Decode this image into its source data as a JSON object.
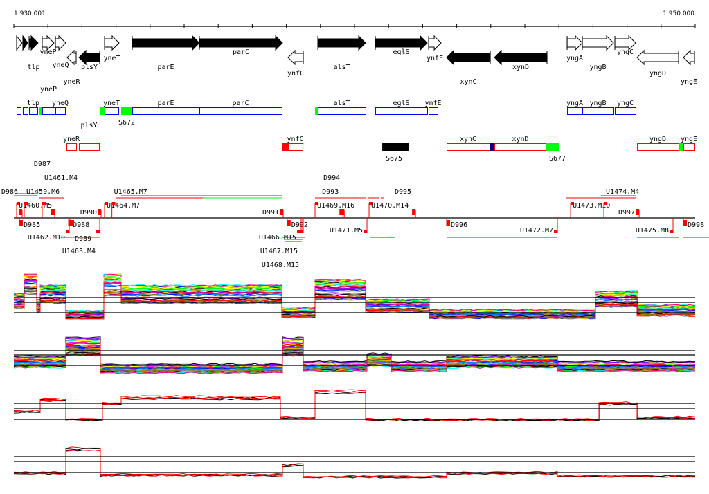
{
  "ruler": {
    "start_label": "1 930 001",
    "end_label": "1 950 000",
    "start_bp": 1930001,
    "end_bp": 1950000
  },
  "genes": [
    {
      "name": "",
      "start": 1930082,
      "end": 1930245,
      "strand": "+",
      "filled": false
    },
    {
      "name": "",
      "start": 1930265,
      "end": 1930408,
      "strand": "+",
      "filled": true
    },
    {
      "name": "tlp",
      "start": 1930448,
      "end": 1930712,
      "strand": "+",
      "filled": true
    },
    {
      "name": "yneP",
      "start": 1930834,
      "end": 1931180,
      "strand": "+",
      "filled": false
    },
    {
      "name": "yneQ",
      "start": 1931221,
      "end": 1931525,
      "strand": "+",
      "filled": false
    },
    {
      "name": "yneR",
      "start": 1931566,
      "end": 1931830,
      "strand": "-",
      "filled": false
    },
    {
      "name": "plsY",
      "start": 1931912,
      "end": 1932521,
      "strand": "-",
      "filled": true
    },
    {
      "name": "yneT",
      "start": 1932664,
      "end": 1933090,
      "strand": "+",
      "filled": false
    },
    {
      "name": "parE",
      "start": 1933477,
      "end": 1935448,
      "strand": "+",
      "filled": true
    },
    {
      "name": "parC",
      "start": 1935448,
      "end": 1937887,
      "strand": "+",
      "filled": true
    },
    {
      "name": "ynfC",
      "start": 1938050,
      "end": 1938497,
      "strand": "-",
      "filled": false
    },
    {
      "name": "alsT",
      "start": 1938924,
      "end": 1940326,
      "strand": "+",
      "filled": true
    },
    {
      "name": "eglS",
      "start": 1940611,
      "end": 1942135,
      "strand": "+",
      "filled": true
    },
    {
      "name": "ynfE",
      "start": 1942176,
      "end": 1942542,
      "strand": "+",
      "filled": false
    },
    {
      "name": "xynC",
      "start": 1942704,
      "end": 1943985,
      "strand": "-",
      "filled": true
    },
    {
      "name": "xynD",
      "start": 1944107,
      "end": 1945651,
      "strand": "-",
      "filled": true
    },
    {
      "name": "yngA",
      "start": 1946241,
      "end": 1946688,
      "strand": "+",
      "filled": false
    },
    {
      "name": "yngB",
      "start": 1946688,
      "end": 1947602,
      "strand": "+",
      "filled": false
    },
    {
      "name": "yngC",
      "start": 1947643,
      "end": 1948253,
      "strand": "+",
      "filled": false
    },
    {
      "name": "yngD",
      "start": 1948294,
      "end": 1949513,
      "strand": "-",
      "filled": false
    },
    {
      "name": "yngE",
      "start": 1949655,
      "end": 1949980,
      "strand": "-",
      "filled": false
    }
  ],
  "transcripts_plus": [
    {
      "name": "",
      "start": 1930082,
      "end": 1930204,
      "color": "#0000ff",
      "fill": "none"
    },
    {
      "name": "",
      "start": 1930265,
      "end": 1930408,
      "color": "#0000ff",
      "fill": "none"
    },
    {
      "name": "tlp",
      "start": 1930448,
      "end": 1930692,
      "color": "#0000ff",
      "fill": "none"
    },
    {
      "name": "",
      "start": 1930733,
      "end": 1930814,
      "color": "#00ff00",
      "fill": "#00ff00"
    },
    {
      "name": "yneP",
      "start": 1930834,
      "end": 1931200,
      "color": "#0000ff",
      "fill": "none"
    },
    {
      "name": "yneQ",
      "start": 1931221,
      "end": 1931505,
      "color": "#0000ff",
      "fill": "none"
    },
    {
      "name": "",
      "start": 1932521,
      "end": 1932643,
      "color": "#00ff00",
      "fill": "#00ff00"
    },
    {
      "name": "yneT",
      "start": 1932664,
      "end": 1933070,
      "color": "#0000ff",
      "fill": "none"
    },
    {
      "name": "",
      "start": 1933151,
      "end": 1933477,
      "color": "#00ff00",
      "fill": "#00ff00"
    },
    {
      "name": "parE",
      "start": 1933477,
      "end": 1935448,
      "color": "#0000ff",
      "fill": "none"
    },
    {
      "name": "parC",
      "start": 1935448,
      "end": 1937867,
      "color": "#0000ff",
      "fill": "none"
    },
    {
      "name": "",
      "start": 1938842,
      "end": 1938924,
      "color": "#00ff00",
      "fill": "#00ff00"
    },
    {
      "name": "alsT",
      "start": 1938924,
      "end": 1940326,
      "color": "#0000ff",
      "fill": "none"
    },
    {
      "name": "eglS",
      "start": 1940611,
      "end": 1942135,
      "color": "#0000ff",
      "fill": "none"
    },
    {
      "name": "ynfE",
      "start": 1942176,
      "end": 1942440,
      "color": "#0000ff",
      "fill": "none"
    },
    {
      "name": "yngA",
      "start": 1946241,
      "end": 1946688,
      "color": "#0000ff",
      "fill": "none"
    },
    {
      "name": "yngB",
      "start": 1946688,
      "end": 1947602,
      "color": "#0000ff",
      "fill": "none"
    },
    {
      "name": "yngC",
      "start": 1947643,
      "end": 1948253,
      "color": "#0000ff",
      "fill": "none"
    }
  ],
  "transcripts_plus_signals": [
    {
      "name": "S672",
      "at": 1933314
    }
  ],
  "transcripts_minus": [
    {
      "name": "yneR",
      "start": 1931546,
      "end": 1931830,
      "color": "#ff0000",
      "fill": "none"
    },
    {
      "name": "plsY",
      "start": 1931912,
      "end": 1932500,
      "color": "#ff0000",
      "fill": "none"
    },
    {
      "name": "",
      "start": 1937867,
      "end": 1938050,
      "color": "#ff0000",
      "fill": "#ff0000"
    },
    {
      "name": "ynfC",
      "start": 1938050,
      "end": 1938477,
      "color": "#ff0000",
      "fill": "none"
    },
    {
      "name": "",
      "start": 1940815,
      "end": 1941567,
      "color": "#000000",
      "fill": "#000000"
    },
    {
      "name": "xynC",
      "start": 1942704,
      "end": 1943965,
      "color": "#ff0000",
      "fill": "none"
    },
    {
      "name": "",
      "start": 1943965,
      "end": 1944107,
      "color": "#000080",
      "fill": "#000080"
    },
    {
      "name": "xynD",
      "start": 1944107,
      "end": 1945631,
      "color": "#ff0000",
      "fill": "none"
    },
    {
      "name": "",
      "start": 1945631,
      "end": 1945977,
      "color": "#00ff00",
      "fill": "#00ff00"
    },
    {
      "name": "yngD",
      "start": 1948294,
      "end": 1949513,
      "color": "#ff0000",
      "fill": "none"
    },
    {
      "name": "",
      "start": 1949513,
      "end": 1949615,
      "color": "#00ff00",
      "fill": "#00ff00"
    },
    {
      "name": "yngE",
      "start": 1949655,
      "end": 1949980,
      "color": "#ff0000",
      "fill": "none"
    }
  ],
  "transcripts_minus_signals": [
    {
      "name": "S675",
      "at": 1941160
    },
    {
      "name": "S677",
      "at": 1945956
    }
  ],
  "features_above": [
    {
      "name": "U1460.M5",
      "at": 1930082
    },
    {
      "name": "U1459.M6",
      "at": 1930306
    },
    {
      "name": "D986",
      "at": 1930245
    },
    {
      "name": "U1461.M4",
      "at": 1930834
    },
    {
      "name": "D987",
      "at": 1931200
    },
    {
      "name": "D990",
      "at": 1932562
    },
    {
      "name": "U1464.M7",
      "at": 1932664
    },
    {
      "name": "U1465.M7",
      "at": 1932880
    },
    {
      "name": "D991",
      "at": 1937908
    },
    {
      "name": "U1469.M16",
      "at": 1938842
    },
    {
      "name": "D993",
      "at": 1939660
    },
    {
      "name": "D994",
      "at": 1939700
    },
    {
      "name": "U1470.M14",
      "at": 1940428
    },
    {
      "name": "D995",
      "at": 1941791
    },
    {
      "name": "U1473.M10",
      "at": 1946343
    },
    {
      "name": "U1474.M4",
      "at": 1947318
    },
    {
      "name": "D997",
      "at": 1948355
    }
  ],
  "features_below": [
    {
      "name": "D985",
      "at": 1930164
    },
    {
      "name": "U1462.M10",
      "at": 1931627
    },
    {
      "name": "D988",
      "at": 1931608
    },
    {
      "name": "D989",
      "at": 1931668
    },
    {
      "name": "U1463.M4",
      "at": 1932522
    },
    {
      "name": "D992",
      "at": 1938025
    },
    {
      "name": "U1466.M15",
      "at": 1938416
    },
    {
      "name": "U1467.M15",
      "at": 1938456
    },
    {
      "name": "U1468.M15",
      "at": 1938497
    },
    {
      "name": "U1471.M5",
      "at": 1940367
    },
    {
      "name": "D996",
      "at": 1942704
    },
    {
      "name": "U1472.M7",
      "at": 1945956
    },
    {
      "name": "U1475.M8",
      "at": 1949350
    },
    {
      "name": "D998",
      "at": 1949655
    }
  ],
  "expression_panels": [
    {
      "breaks": [
        1930001,
        1930306,
        1930672,
        1930773,
        1931525,
        1932643,
        1933151,
        1937867,
        1938842,
        1940326,
        1942196,
        1947074,
        1948294,
        1950001
      ],
      "levels": [
        0.4,
        0.8,
        0.3,
        0.55,
        0.1,
        0.75,
        0.55,
        0.15,
        0.65,
        0.3,
        0.12,
        0.45,
        0.2
      ],
      "multicolor": true
    },
    {
      "breaks": [
        1930001,
        1931525,
        1932542,
        1937887,
        1938497,
        1940367,
        1941078,
        1942704,
        1945956,
        1950001
      ],
      "levels": [
        0.3,
        0.65,
        0.15,
        0.65,
        0.2,
        0.35,
        0.2,
        0.3,
        0.2
      ],
      "multicolor": true
    },
    {
      "breaks": [
        1930001,
        1930773,
        1931525,
        1932603,
        1933151,
        1937826,
        1938842,
        1940326,
        1947176,
        1948294,
        1950001
      ],
      "levels": [
        0.35,
        0.65,
        0.15,
        0.55,
        0.7,
        0.2,
        0.85,
        0.15,
        0.55,
        0.2
      ],
      "multicolor": false
    },
    {
      "breaks": [
        1930001,
        1931525,
        1932542,
        1937887,
        1938497,
        1942704,
        1945956,
        1950001
      ],
      "levels": [
        0.2,
        0.8,
        0.15,
        0.4,
        0.1,
        0.2,
        0.12
      ],
      "multicolor": false
    }
  ]
}
